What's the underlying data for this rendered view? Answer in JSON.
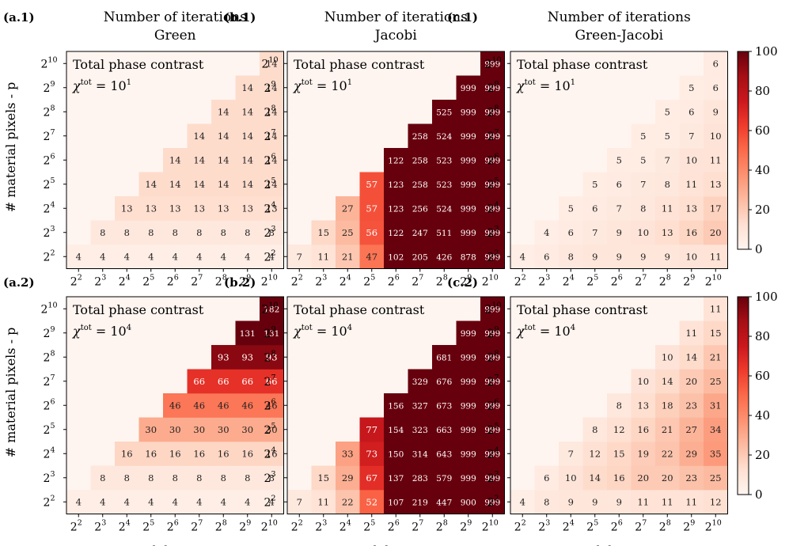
{
  "figure": {
    "panels": [
      {
        "tag": "(a.1)",
        "title": "Number of iterations",
        "subtitle": "Green",
        "annotation_line1": "Total phase contrast",
        "annotation_line2": "χ",
        "annotation_sup": "tot",
        "annotation_eq": " = 10",
        "annotation_exp": "1"
      },
      {
        "tag": "(b.1)",
        "title": "Number of iterations",
        "subtitle": "Jacobi",
        "annotation_line1": "Total phase contrast",
        "annotation_line2": "χ",
        "annotation_sup": "tot",
        "annotation_eq": " = 10",
        "annotation_exp": "1"
      },
      {
        "tag": "(c.1)",
        "title": "Number of iterations",
        "subtitle": "Green-Jacobi",
        "annotation_line1": "Total phase contrast",
        "annotation_line2": "χ",
        "annotation_sup": "tot",
        "annotation_eq": " = 10",
        "annotation_exp": "1"
      },
      {
        "tag": "(a.2)",
        "title": "",
        "subtitle": "",
        "annotation_line1": "Total phase contrast",
        "annotation_line2": "χ",
        "annotation_sup": "tot",
        "annotation_eq": " = 10",
        "annotation_exp": "4"
      },
      {
        "tag": "(b.2)",
        "title": "",
        "subtitle": "",
        "annotation_line1": "Total phase contrast",
        "annotation_line2": "χ",
        "annotation_sup": "tot",
        "annotation_eq": " = 10",
        "annotation_exp": "4"
      },
      {
        "tag": "(c.2)",
        "title": "",
        "subtitle": "",
        "annotation_line1": "Total phase contrast",
        "annotation_line2": "χ",
        "annotation_sup": "tot",
        "annotation_eq": " = 10",
        "annotation_exp": "4"
      }
    ],
    "ylabel": "# material pixels - p",
    "xlabel": "# nodal points - n",
    "tick_base": "2",
    "tick_exponents": [
      "2",
      "3",
      "4",
      "5",
      "6",
      "7",
      "8",
      "9",
      "10"
    ],
    "colorbar_ticks": [
      "0",
      "20",
      "40",
      "60",
      "80",
      "100"
    ],
    "colormap": [
      "#fff5f0",
      "#fee0d2",
      "#fcbba1",
      "#fc9272",
      "#fb6a4a",
      "#ef3b2c",
      "#cb181d",
      "#a50f15",
      "#67000d"
    ]
  },
  "chart_data": [
    {
      "type": "heatmap",
      "title": "Number of iterations",
      "subtitle": "Green",
      "xlabel": "",
      "ylabel": "# material pixels - p",
      "x": [
        "2^2",
        "2^3",
        "2^4",
        "2^5",
        "2^6",
        "2^7",
        "2^8",
        "2^9",
        "2^10"
      ],
      "y": [
        "2^2",
        "2^3",
        "2^4",
        "2^5",
        "2^6",
        "2^7",
        "2^8",
        "2^9",
        "2^10"
      ],
      "vmin": 0,
      "vmax": 100,
      "values": [
        [
          4,
          4,
          4,
          4,
          4,
          4,
          4,
          4,
          4
        ],
        [
          null,
          8,
          8,
          8,
          8,
          8,
          8,
          8,
          8
        ],
        [
          null,
          null,
          13,
          13,
          13,
          13,
          13,
          13,
          13
        ],
        [
          null,
          null,
          null,
          14,
          14,
          14,
          14,
          14,
          14
        ],
        [
          null,
          null,
          null,
          null,
          14,
          14,
          14,
          14,
          14
        ],
        [
          null,
          null,
          null,
          null,
          null,
          14,
          14,
          14,
          14
        ],
        [
          null,
          null,
          null,
          null,
          null,
          null,
          14,
          14,
          14
        ],
        [
          null,
          null,
          null,
          null,
          null,
          null,
          null,
          14,
          14
        ],
        [
          null,
          null,
          null,
          null,
          null,
          null,
          null,
          null,
          14
        ]
      ]
    },
    {
      "type": "heatmap",
      "title": "Number of iterations",
      "subtitle": "Jacobi",
      "xlabel": "",
      "ylabel": "",
      "x": [
        "2^2",
        "2^3",
        "2^4",
        "2^5",
        "2^6",
        "2^7",
        "2^8",
        "2^9",
        "2^10"
      ],
      "y": [
        "2^2",
        "2^3",
        "2^4",
        "2^5",
        "2^6",
        "2^7",
        "2^8",
        "2^9",
        "2^10"
      ],
      "vmin": 0,
      "vmax": 100,
      "values": [
        [
          7,
          11,
          21,
          47,
          102,
          205,
          426,
          878,
          999
        ],
        [
          null,
          15,
          25,
          56,
          122,
          247,
          511,
          999,
          999
        ],
        [
          null,
          null,
          27,
          57,
          123,
          256,
          524,
          999,
          999
        ],
        [
          null,
          null,
          null,
          57,
          123,
          258,
          523,
          999,
          999
        ],
        [
          null,
          null,
          null,
          null,
          122,
          258,
          523,
          999,
          999
        ],
        [
          null,
          null,
          null,
          null,
          null,
          258,
          524,
          999,
          999
        ],
        [
          null,
          null,
          null,
          null,
          null,
          null,
          525,
          999,
          999
        ],
        [
          null,
          null,
          null,
          null,
          null,
          null,
          null,
          999,
          999
        ],
        [
          null,
          null,
          null,
          null,
          null,
          null,
          null,
          null,
          999
        ]
      ]
    },
    {
      "type": "heatmap",
      "title": "Number of iterations",
      "subtitle": "Green-Jacobi",
      "xlabel": "",
      "ylabel": "",
      "x": [
        "2^2",
        "2^3",
        "2^4",
        "2^5",
        "2^6",
        "2^7",
        "2^8",
        "2^9",
        "2^10"
      ],
      "y": [
        "2^2",
        "2^3",
        "2^4",
        "2^5",
        "2^6",
        "2^7",
        "2^8",
        "2^9",
        "2^10"
      ],
      "vmin": 0,
      "vmax": 100,
      "values": [
        [
          4,
          6,
          8,
          9,
          9,
          9,
          9,
          10,
          11
        ],
        [
          null,
          4,
          6,
          7,
          9,
          10,
          13,
          16,
          20
        ],
        [
          null,
          null,
          5,
          6,
          7,
          8,
          11,
          13,
          17
        ],
        [
          null,
          null,
          null,
          5,
          6,
          7,
          8,
          11,
          13
        ],
        [
          null,
          null,
          null,
          null,
          5,
          5,
          7,
          10,
          11
        ],
        [
          null,
          null,
          null,
          null,
          null,
          5,
          5,
          7,
          10
        ],
        [
          null,
          null,
          null,
          null,
          null,
          null,
          5,
          6,
          9
        ],
        [
          null,
          null,
          null,
          null,
          null,
          null,
          null,
          5,
          6
        ],
        [
          null,
          null,
          null,
          null,
          null,
          null,
          null,
          null,
          6
        ]
      ]
    },
    {
      "type": "heatmap",
      "title": "",
      "subtitle": "",
      "xlabel": "# nodal points - n",
      "ylabel": "# material pixels - p",
      "x": [
        "2^2",
        "2^3",
        "2^4",
        "2^5",
        "2^6",
        "2^7",
        "2^8",
        "2^9",
        "2^10"
      ],
      "y": [
        "2^2",
        "2^3",
        "2^4",
        "2^5",
        "2^6",
        "2^7",
        "2^8",
        "2^9",
        "2^10"
      ],
      "vmin": 0,
      "vmax": 100,
      "values": [
        [
          4,
          4,
          4,
          4,
          4,
          4,
          4,
          4,
          4
        ],
        [
          null,
          8,
          8,
          8,
          8,
          8,
          8,
          8,
          8
        ],
        [
          null,
          null,
          16,
          16,
          16,
          16,
          16,
          16,
          16
        ],
        [
          null,
          null,
          null,
          30,
          30,
          30,
          30,
          30,
          30
        ],
        [
          null,
          null,
          null,
          null,
          46,
          46,
          46,
          46,
          46
        ],
        [
          null,
          null,
          null,
          null,
          null,
          66,
          66,
          66,
          66
        ],
        [
          null,
          null,
          null,
          null,
          null,
          null,
          93,
          93,
          93
        ],
        [
          null,
          null,
          null,
          null,
          null,
          null,
          null,
          131,
          131
        ],
        [
          null,
          null,
          null,
          null,
          null,
          null,
          null,
          null,
          182
        ]
      ]
    },
    {
      "type": "heatmap",
      "title": "",
      "subtitle": "",
      "xlabel": "# nodal points - n",
      "ylabel": "",
      "x": [
        "2^2",
        "2^3",
        "2^4",
        "2^5",
        "2^6",
        "2^7",
        "2^8",
        "2^9",
        "2^10"
      ],
      "y": [
        "2^2",
        "2^3",
        "2^4",
        "2^5",
        "2^6",
        "2^7",
        "2^8",
        "2^9",
        "2^10"
      ],
      "vmin": 0,
      "vmax": 100,
      "values": [
        [
          7,
          11,
          22,
          52,
          107,
          219,
          447,
          900,
          999
        ],
        [
          null,
          15,
          29,
          67,
          137,
          283,
          579,
          999,
          999
        ],
        [
          null,
          null,
          33,
          73,
          150,
          314,
          643,
          999,
          999
        ],
        [
          null,
          null,
          null,
          77,
          154,
          323,
          663,
          999,
          999
        ],
        [
          null,
          null,
          null,
          null,
          156,
          327,
          673,
          999,
          999
        ],
        [
          null,
          null,
          null,
          null,
          null,
          329,
          676,
          999,
          999
        ],
        [
          null,
          null,
          null,
          null,
          null,
          null,
          681,
          999,
          999
        ],
        [
          null,
          null,
          null,
          null,
          null,
          null,
          null,
          999,
          999
        ],
        [
          null,
          null,
          null,
          null,
          null,
          null,
          null,
          null,
          999
        ]
      ]
    },
    {
      "type": "heatmap",
      "title": "",
      "subtitle": "",
      "xlabel": "# nodal points - n",
      "ylabel": "",
      "x": [
        "2^2",
        "2^3",
        "2^4",
        "2^5",
        "2^6",
        "2^7",
        "2^8",
        "2^9",
        "2^10"
      ],
      "y": [
        "2^2",
        "2^3",
        "2^4",
        "2^5",
        "2^6",
        "2^7",
        "2^8",
        "2^9",
        "2^10"
      ],
      "vmin": 0,
      "vmax": 100,
      "values": [
        [
          4,
          8,
          9,
          9,
          9,
          11,
          11,
          11,
          12
        ],
        [
          null,
          6,
          10,
          14,
          16,
          20,
          20,
          23,
          25
        ],
        [
          null,
          null,
          7,
          12,
          15,
          19,
          22,
          29,
          35
        ],
        [
          null,
          null,
          null,
          8,
          12,
          16,
          21,
          27,
          34
        ],
        [
          null,
          null,
          null,
          null,
          8,
          13,
          18,
          23,
          31
        ],
        [
          null,
          null,
          null,
          null,
          null,
          10,
          14,
          20,
          25
        ],
        [
          null,
          null,
          null,
          null,
          null,
          null,
          10,
          14,
          21
        ],
        [
          null,
          null,
          null,
          null,
          null,
          null,
          null,
          11,
          15
        ],
        [
          null,
          null,
          null,
          null,
          null,
          null,
          null,
          null,
          11
        ]
      ]
    }
  ]
}
